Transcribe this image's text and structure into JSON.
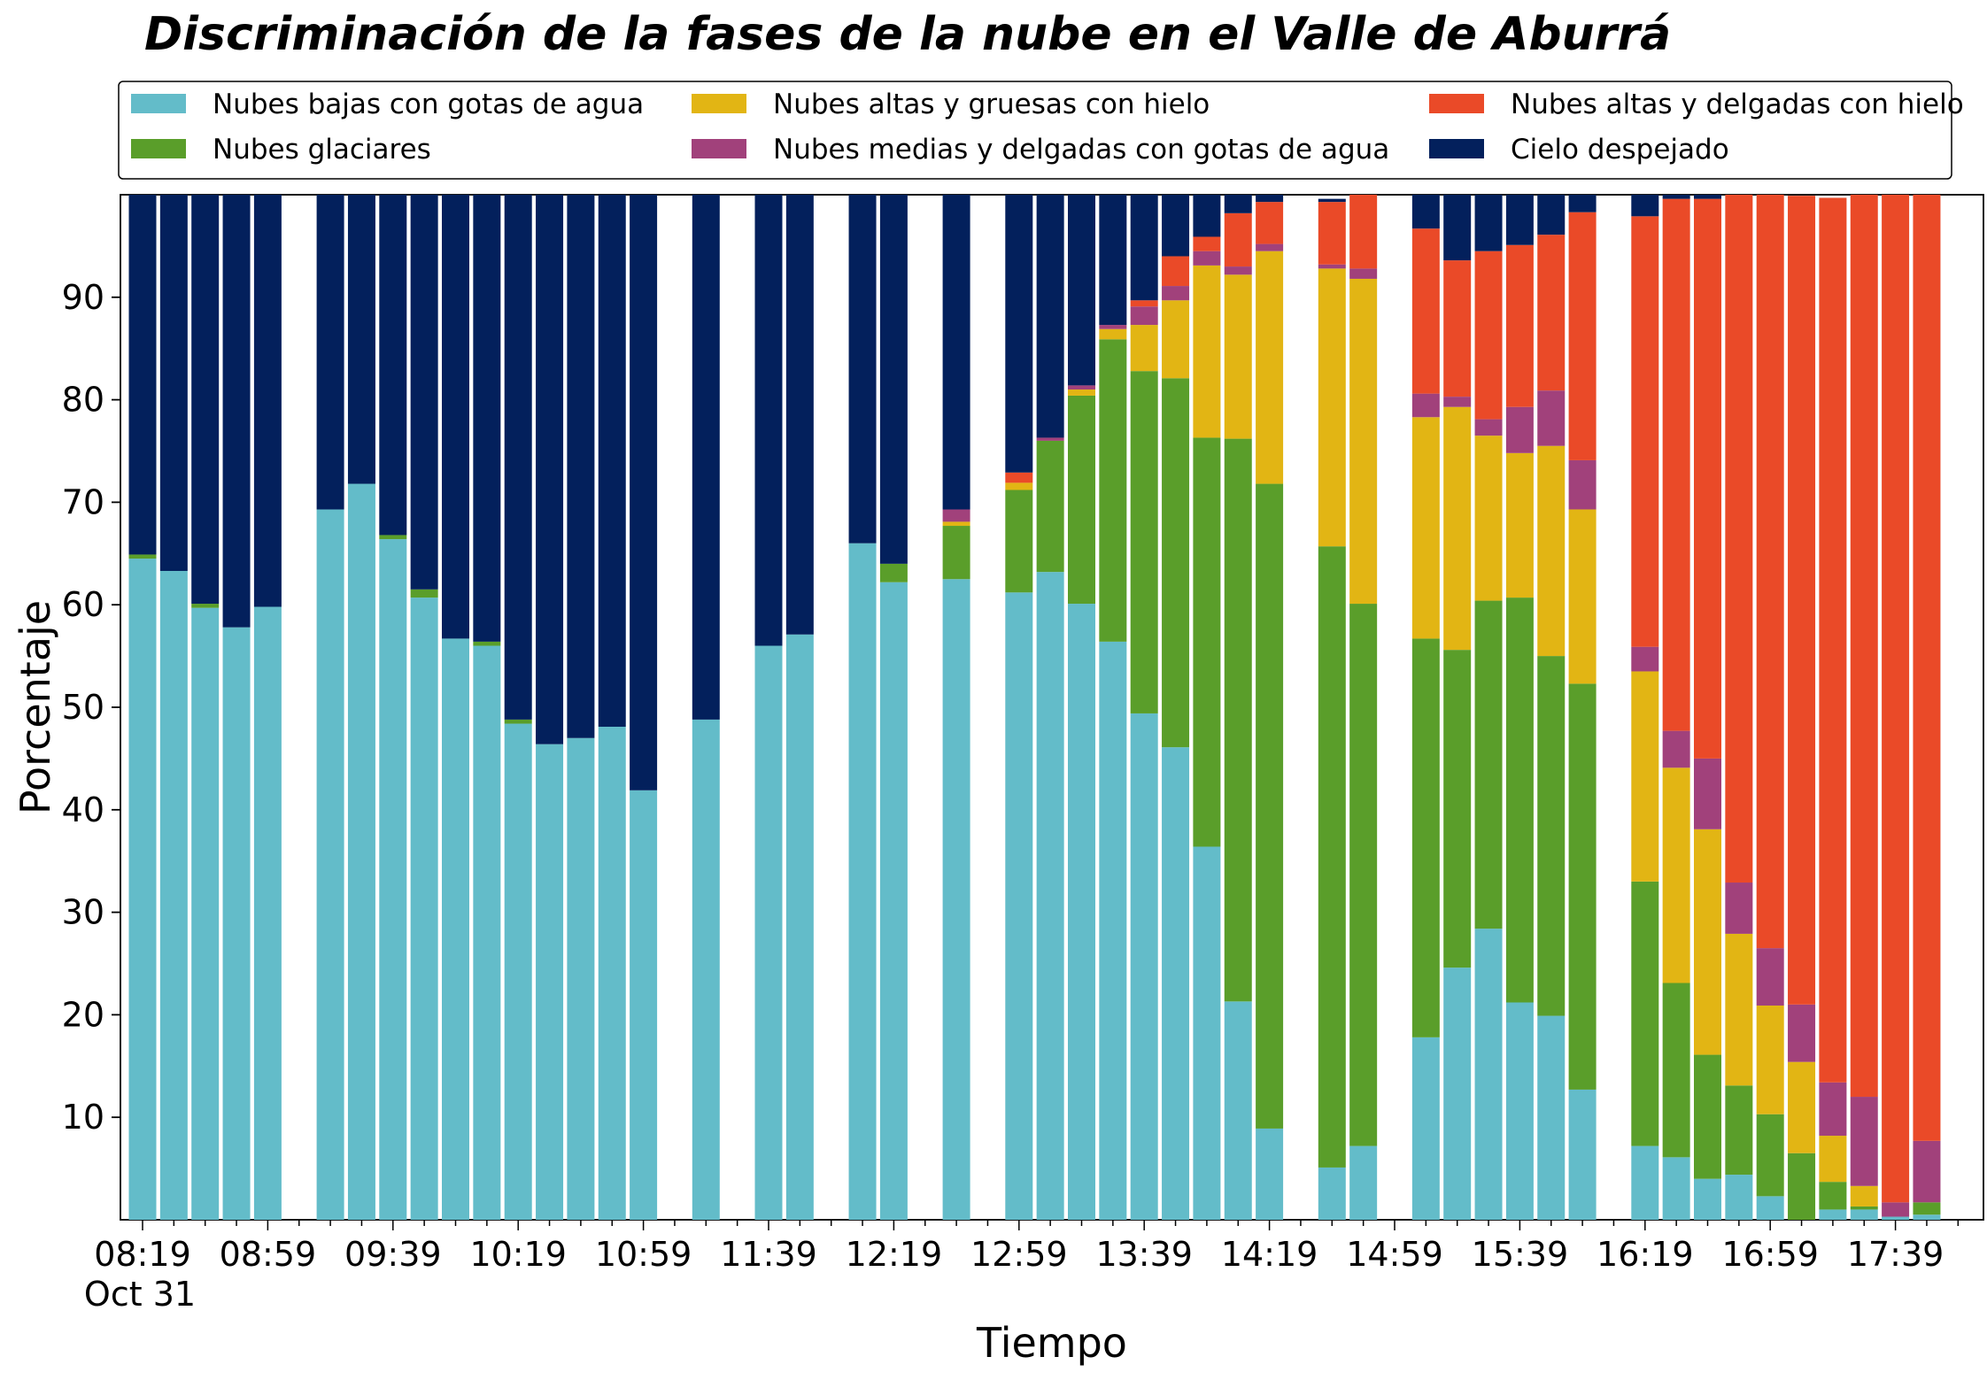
{
  "chart_data": {
    "type": "bar",
    "stacked": true,
    "title": "Discriminación de la fases de la nube en el Valle de Aburrá",
    "xlabel": "Tiempo",
    "ylabel": "Porcentaje",
    "ylim": [
      0,
      100
    ],
    "yticks": [
      10,
      20,
      30,
      40,
      50,
      60,
      70,
      80,
      90
    ],
    "grid": false,
    "legend_position": "top",
    "date_label": "Oct 31",
    "x": [
      "08:19",
      "08:29",
      "08:39",
      "08:49",
      "08:59",
      "09:09",
      "09:19",
      "09:29",
      "09:39",
      "09:49",
      "09:59",
      "10:09",
      "10:19",
      "10:29",
      "10:39",
      "10:49",
      "10:59",
      "11:09",
      "11:19",
      "11:29",
      "11:39",
      "11:49",
      "11:59",
      "12:09",
      "12:19",
      "12:29",
      "12:39",
      "12:49",
      "12:59",
      "13:09",
      "13:19",
      "13:29",
      "13:39",
      "13:49",
      "13:59",
      "14:09",
      "14:19",
      "14:29",
      "14:39",
      "14:49",
      "14:59",
      "15:09",
      "15:19",
      "15:29",
      "15:39",
      "15:49",
      "15:59",
      "16:09",
      "16:19",
      "16:29",
      "16:39",
      "16:49",
      "16:59",
      "17:09",
      "17:19",
      "17:29",
      "17:39",
      "17:49"
    ],
    "x_tick_labels": [
      "08:19",
      "08:59",
      "09:39",
      "10:19",
      "10:59",
      "11:39",
      "12:19",
      "12:59",
      "13:39",
      "14:19",
      "14:59",
      "15:39",
      "16:19",
      "16:59",
      "17:39"
    ],
    "series": [
      {
        "name": "Nubes bajas con gotas de agua",
        "color": "#63bcc9",
        "values": [
          64.5,
          63.3,
          59.7,
          57.8,
          59.8,
          null,
          69.3,
          71.8,
          66.4,
          60.7,
          56.7,
          56.0,
          48.4,
          46.4,
          47.0,
          48.1,
          41.9,
          null,
          48.8,
          null,
          56.0,
          57.1,
          null,
          66.0,
          62.2,
          null,
          62.5,
          null,
          61.2,
          63.2,
          60.1,
          56.4,
          49.4,
          46.1,
          36.4,
          21.3,
          8.9,
          null,
          5.1,
          7.2,
          null,
          17.8,
          24.6,
          28.4,
          21.2,
          19.9,
          12.7,
          null,
          7.2,
          6.1,
          4.0,
          4.4,
          2.3,
          0.0,
          1.0,
          1.0,
          0.3,
          0.5
        ]
      },
      {
        "name": "Nubes glaciares",
        "color": "#5a9e2a",
        "values": [
          0.4,
          0.0,
          0.4,
          0.0,
          0.0,
          null,
          0.0,
          0.0,
          0.4,
          0.8,
          0.0,
          0.4,
          0.4,
          0.0,
          0.0,
          0.0,
          0.0,
          null,
          0.0,
          null,
          0.0,
          0.0,
          null,
          0.0,
          1.8,
          null,
          5.2,
          null,
          10.0,
          12.8,
          20.3,
          29.5,
          33.4,
          36.0,
          39.9,
          54.9,
          62.9,
          null,
          60.6,
          52.9,
          null,
          38.9,
          31.0,
          32.0,
          39.5,
          35.1,
          39.6,
          null,
          25.8,
          17.0,
          12.1,
          8.7,
          8.0,
          6.5,
          2.7,
          0.3,
          0.0,
          1.2
        ]
      },
      {
        "name": "Nubes altas y gruesas con hielo",
        "color": "#e2b514",
        "values": [
          0,
          0,
          0,
          0,
          0,
          null,
          0,
          0,
          0,
          0,
          0,
          0,
          0,
          0,
          0,
          0,
          0,
          null,
          0,
          null,
          0,
          0,
          null,
          0,
          0,
          null,
          0.4,
          null,
          0.7,
          0,
          0.6,
          1.0,
          4.5,
          7.6,
          16.8,
          16.0,
          22.7,
          null,
          27.1,
          31.7,
          null,
          21.6,
          23.7,
          16.1,
          14.1,
          20.5,
          17.0,
          null,
          20.5,
          21.0,
          22.0,
          14.8,
          10.6,
          8.9,
          4.5,
          2.0,
          0.0,
          0.0
        ]
      },
      {
        "name": "Nubes medias y delgadas con gotas de agua",
        "color": "#a1417b",
        "values": [
          0,
          0,
          0,
          0,
          0,
          null,
          0,
          0,
          0,
          0,
          0,
          0,
          0,
          0,
          0,
          0,
          0,
          null,
          0,
          null,
          0,
          0,
          null,
          0,
          0,
          null,
          1.2,
          null,
          0,
          0.3,
          0.4,
          0.4,
          1.8,
          1.4,
          1.4,
          0.8,
          0.7,
          null,
          0.4,
          1.0,
          null,
          2.3,
          1.0,
          1.6,
          4.5,
          5.4,
          4.8,
          null,
          2.4,
          3.6,
          6.9,
          5.0,
          5.6,
          5.6,
          5.2,
          8.7,
          1.4,
          6.0
        ]
      },
      {
        "name": "Nubes altas y delgadas con hielo",
        "color": "#ea4a28",
        "values": [
          0,
          0,
          0,
          0,
          0,
          null,
          0,
          0,
          0,
          0,
          0,
          0,
          0,
          0,
          0,
          0,
          0,
          null,
          0,
          null,
          0,
          0,
          null,
          0,
          0,
          null,
          0,
          null,
          1.0,
          0,
          0,
          0,
          0.6,
          2.9,
          1.4,
          5.2,
          4.1,
          null,
          6.1,
          7.3,
          null,
          16.1,
          13.3,
          16.4,
          15.8,
          15.2,
          24.2,
          null,
          42.0,
          51.9,
          54.6,
          67.1,
          73.5,
          78.9,
          86.3,
          88.0,
          98.3,
          92.3
        ]
      },
      {
        "name": "Cielo despejado",
        "color": "#03205c",
        "values": [
          35.1,
          36.7,
          39.9,
          42.2,
          40.2,
          null,
          30.7,
          28.2,
          33.2,
          38.5,
          43.3,
          43.6,
          51.2,
          53.6,
          53.0,
          51.9,
          58.1,
          null,
          51.2,
          null,
          44.0,
          42.9,
          null,
          34.0,
          36.0,
          null,
          30.7,
          null,
          27.1,
          23.7,
          18.6,
          12.7,
          10.3,
          6.0,
          4.1,
          1.8,
          0.7,
          null,
          0.3,
          0.0,
          null,
          3.3,
          6.4,
          5.5,
          4.9,
          3.9,
          1.7,
          null,
          2.1,
          0.4,
          0.4,
          0,
          0,
          0,
          0,
          0,
          0,
          0
        ]
      }
    ]
  }
}
